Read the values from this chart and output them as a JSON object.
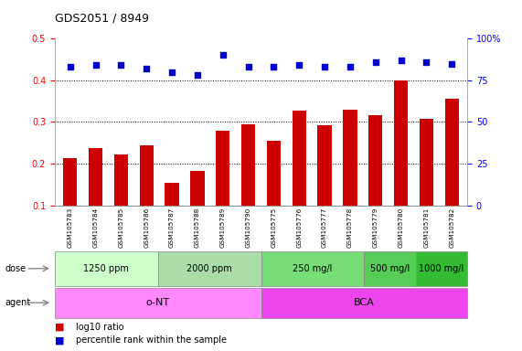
{
  "title": "GDS2051 / 8949",
  "samples": [
    "GSM105783",
    "GSM105784",
    "GSM105785",
    "GSM105786",
    "GSM105787",
    "GSM105788",
    "GSM105789",
    "GSM105790",
    "GSM105775",
    "GSM105776",
    "GSM105777",
    "GSM105778",
    "GSM105779",
    "GSM105780",
    "GSM105781",
    "GSM105782"
  ],
  "log10_ratio": [
    0.213,
    0.238,
    0.222,
    0.245,
    0.153,
    0.183,
    0.278,
    0.295,
    0.255,
    0.328,
    0.293,
    0.33,
    0.317,
    0.4,
    0.307,
    0.355
  ],
  "percentile_rank": [
    83,
    84,
    84,
    82,
    80,
    78,
    90,
    83,
    83,
    84,
    83,
    83,
    86,
    87,
    86,
    85
  ],
  "bar_color": "#cc0000",
  "square_color": "#0000cc",
  "ylim_left": [
    0.1,
    0.5
  ],
  "ylim_right": [
    0,
    100
  ],
  "yticks_left": [
    0.1,
    0.2,
    0.3,
    0.4,
    0.5
  ],
  "yticks_right": [
    0,
    25,
    50,
    75,
    100
  ],
  "dose_groups": [
    {
      "label": "1250 ppm",
      "start": 0,
      "end": 4,
      "color": "#ccffcc"
    },
    {
      "label": "2000 ppm",
      "start": 4,
      "end": 8,
      "color": "#aaddaa"
    },
    {
      "label": "250 mg/l",
      "start": 8,
      "end": 12,
      "color": "#77dd77"
    },
    {
      "label": "500 mg/l",
      "start": 12,
      "end": 14,
      "color": "#55cc55"
    },
    {
      "label": "1000 mg/l",
      "start": 14,
      "end": 16,
      "color": "#33bb33"
    }
  ],
  "agent_groups": [
    {
      "label": "o-NT",
      "start": 0,
      "end": 8,
      "color": "#ff88ff"
    },
    {
      "label": "BCA",
      "start": 8,
      "end": 16,
      "color": "#ee44ee"
    }
  ],
  "background_color": "#ffffff",
  "xtick_bg_color": "#cccccc",
  "dose_label": "dose",
  "agent_label": "agent",
  "legend_red_label": "log10 ratio",
  "legend_blue_label": "percentile rank within the sample"
}
